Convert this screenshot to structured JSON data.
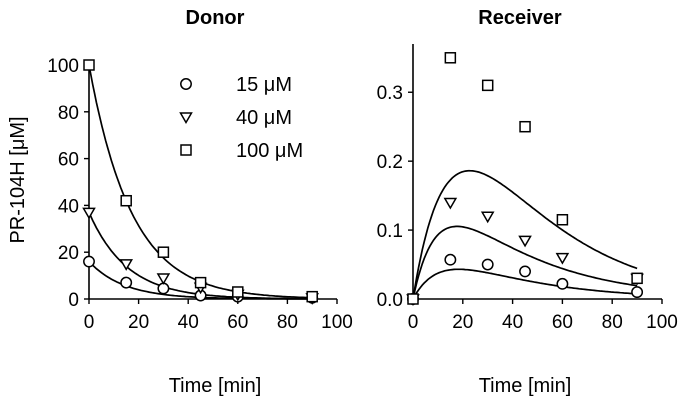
{
  "chart_data": [
    {
      "type": "scatter",
      "title": "Donor",
      "xlabel": "Time [min]",
      "ylabel": "PR-104H [μM]",
      "xlim": [
        0,
        100
      ],
      "ylim": [
        0,
        100
      ],
      "xticks": [
        0,
        20,
        40,
        60,
        80,
        100
      ],
      "yticks": [
        0,
        20,
        40,
        60,
        80,
        100
      ],
      "legend": {
        "position": "top-right",
        "entries": [
          "15 μM",
          "40 μM",
          "100 μM"
        ]
      },
      "series": [
        {
          "name": "15 μM",
          "marker": "circle",
          "x": [
            0,
            15,
            30,
            45,
            60,
            90
          ],
          "y": [
            16,
            7,
            4.5,
            1.5,
            1,
            0.5
          ],
          "fit": {
            "kind": "exp_decay",
            "a": 16,
            "k": 0.07
          }
        },
        {
          "name": "40 μM",
          "marker": "triangle-down",
          "x": [
            0,
            15,
            30,
            45,
            60,
            90
          ],
          "y": [
            37,
            15,
            9,
            5,
            2,
            0.5
          ],
          "fit": {
            "kind": "exp_decay",
            "a": 37,
            "k": 0.065
          }
        },
        {
          "name": "100 μM",
          "marker": "square",
          "x": [
            0,
            15,
            30,
            45,
            60,
            90
          ],
          "y": [
            100,
            42,
            20,
            7,
            3,
            1
          ],
          "fit": {
            "kind": "exp_decay",
            "a": 100,
            "k": 0.058
          }
        }
      ]
    },
    {
      "type": "scatter",
      "title": "Receiver",
      "xlabel": "Time [min]",
      "ylabel": "",
      "xlim": [
        0,
        100
      ],
      "ylim": [
        0,
        0.37
      ],
      "xticks": [
        0,
        20,
        40,
        60,
        80,
        100
      ],
      "yticks": [
        0.0,
        0.1,
        0.2,
        0.3
      ],
      "ytick_labels": [
        "0.0",
        "0.1",
        "0.2",
        "0.3"
      ],
      "series": [
        {
          "name": "15 μM",
          "marker": "circle",
          "x": [
            0,
            15,
            30,
            45,
            60,
            90
          ],
          "y": [
            0,
            0.057,
            0.05,
            0.04,
            0.022,
            0.01
          ],
          "fit": {
            "kind": "bateman",
            "A": 0.112,
            "ke": 0.03,
            "ka": 0.09
          }
        },
        {
          "name": "40 μM",
          "marker": "triangle-down",
          "x": [
            0,
            15,
            30,
            45,
            60,
            90
          ],
          "y": [
            0,
            0.14,
            0.12,
            0.085,
            0.06,
            0.03
          ],
          "fit": {
            "kind": "bateman",
            "A": 0.24,
            "ke": 0.028,
            "ka": 0.1
          }
        },
        {
          "name": "100 μM",
          "marker": "square",
          "x": [
            0,
            15,
            30,
            45,
            60,
            90
          ],
          "y": [
            0,
            0.35,
            0.31,
            0.25,
            0.115,
            0.03
          ],
          "fit": {
            "kind": "bateman",
            "A": 0.78,
            "ke": 0.031,
            "ka": 0.06
          }
        }
      ]
    }
  ]
}
